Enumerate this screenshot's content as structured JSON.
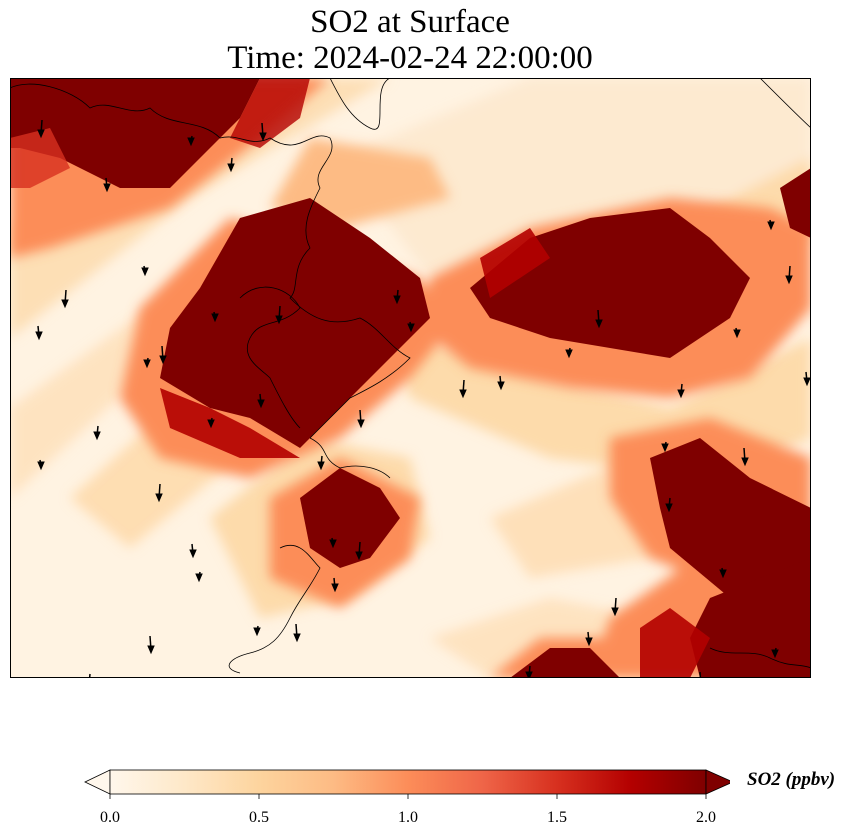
{
  "title_line1": "SO2 at Surface",
  "title_line2": "Time: 2024-02-24 22:00:00",
  "colorbar": {
    "label": "SO2 (ppbv)",
    "min": 0.0,
    "max": 2.0,
    "ticks": [
      "0.0",
      "0.5",
      "1.0",
      "1.5",
      "2.0"
    ],
    "extend": "both",
    "colormap": "OrRd",
    "colors": [
      "#fff7ec",
      "#fee8c8",
      "#fdd49e",
      "#fdbb84",
      "#fc8d59",
      "#ef6548",
      "#d7301f",
      "#b30000",
      "#7f0000"
    ]
  },
  "field": {
    "description_units": "ppbv",
    "high_bands": [
      {
        "name": "upper-left-plume",
        "value": 2.0
      },
      {
        "name": "central-plume",
        "value": 2.0
      },
      {
        "name": "right-plume",
        "value": 2.0
      },
      {
        "name": "lower-right-plume",
        "value": 2.0
      },
      {
        "name": "lower-center-plume",
        "value": 2.0
      }
    ],
    "background_value": 0.1
  },
  "wind": {
    "type": "quiver",
    "direction": "southward",
    "count": 48
  }
}
